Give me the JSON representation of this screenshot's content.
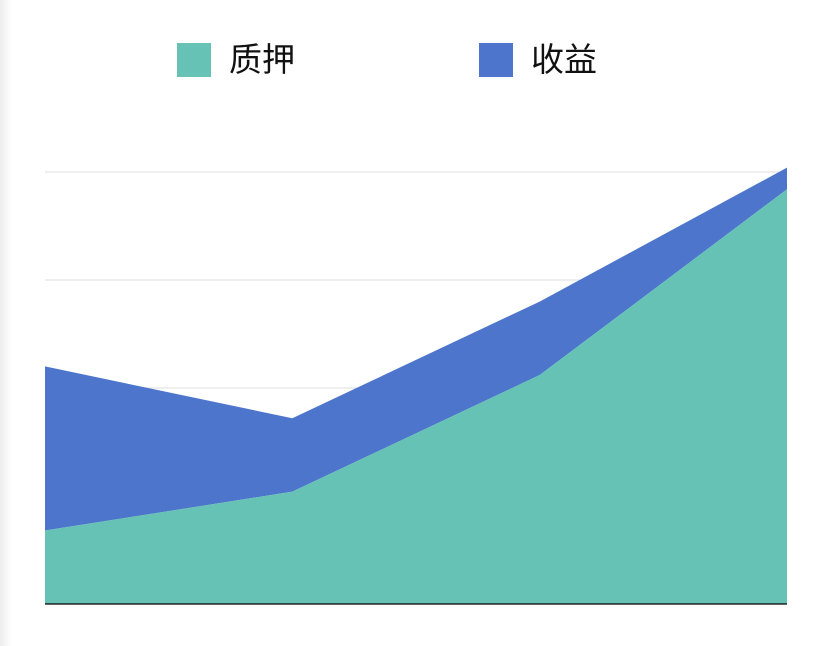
{
  "chart_data": {
    "type": "area",
    "categories": [
      "",
      "",
      "",
      ""
    ],
    "series": [
      {
        "name": "质押",
        "values": [
          1.7,
          2.6,
          5.3,
          9.6
        ],
        "color": "#66c2b5"
      },
      {
        "name": "收益",
        "values": [
          3.8,
          1.7,
          1.7,
          0.5
        ],
        "color": "#4c75cb"
      }
    ],
    "stacked": true,
    "ylim": [
      0,
      10
    ],
    "grid": true,
    "legend_position": "top",
    "axis_line_color": "#000000",
    "grid_color": "#dedede"
  }
}
